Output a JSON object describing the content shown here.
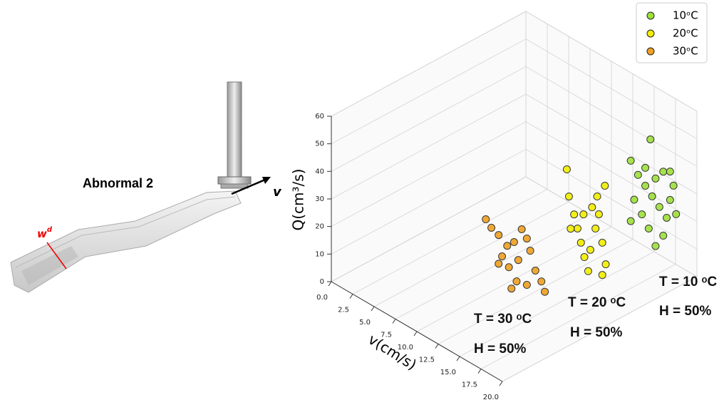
{
  "illustration": {
    "label": "Abnormal 2",
    "width_label": "w",
    "width_sup": "d",
    "velocity_label": "v"
  },
  "chart_data": {
    "type": "scatter3d",
    "xlabel": "v(cm/s)",
    "ylabel": "Q(cm³/s)",
    "xlim": [
      0,
      20
    ],
    "ylim": [
      0,
      60
    ],
    "xticks": [
      {
        "value": 0,
        "label": "0.0"
      },
      {
        "value": 2.5,
        "label": "2.5"
      },
      {
        "value": 5,
        "label": "5.0"
      },
      {
        "value": 7.5,
        "label": "7.5"
      },
      {
        "value": 10,
        "label": "10.0"
      },
      {
        "value": 12.5,
        "label": "12.5"
      },
      {
        "value": 15,
        "label": "15.0"
      },
      {
        "value": 17.5,
        "label": "17.5"
      },
      {
        "value": 20,
        "label": "20.0"
      }
    ],
    "yticks": [
      0,
      10,
      20,
      30,
      40,
      50,
      60
    ],
    "grid": true,
    "legend": "upper right",
    "series": [
      {
        "name": "10ᵒC",
        "color": "#9de03a",
        "x": [
          15.7,
          13.4,
          14.25,
          15.1,
          15.9,
          16.75,
          17.6,
          18.4,
          17.2,
          16.3,
          13.8,
          14.7,
          15.5,
          17.2,
          18.0,
          18.7,
          16.3,
          15.1,
          18.0,
          13.4
        ],
        "values": [
          43.9,
          32.0,
          28.4,
          26.0,
          23.6,
          21.3,
          18.9,
          32.0,
          34.9,
          30.8,
          18.6,
          14.9,
          11.2,
          11.7,
          26.1,
          22.2,
          6.3,
          32.5,
          36.4,
          10.1
        ]
      },
      {
        "name": "20ᵒC",
        "color": "#f2ee00",
        "x": [
          12.75,
          13.0,
          13.6,
          14.0,
          14.4,
          14.8,
          15.25,
          15.7,
          16.1,
          16.5,
          16.9,
          17.2,
          17.3,
          16.9,
          14.7,
          15.5,
          13.2,
          16.3
        ],
        "values": [
          39.1,
          29.7,
          24.3,
          19.9,
          15.5,
          11.0,
          6.7,
          30.7,
          23.7,
          29.6,
          20.0,
          41.2,
          12.9,
          8.3,
          26.3,
          14.9,
          18.4,
          35.7
        ]
      },
      {
        "name": "30ᵒC",
        "color": "#f0a020",
        "x": [
          10.1,
          10.75,
          11.6,
          12.6,
          13.4,
          14.3,
          14.9,
          12.0,
          12.8,
          13.9,
          15.3,
          15.9,
          16.6,
          14.9,
          13.7,
          17.0,
          13.1,
          11.6
        ],
        "values": [
          27.6,
          25.7,
          24.6,
          22.5,
          25.3,
          31.6,
          29.3,
          17.6,
          15.1,
          19.7,
          25.6,
          19.5,
          16.8,
          12.5,
          11.6,
          13.8,
          7.9,
          14.2
        ]
      }
    ],
    "annotations": [
      {
        "temperature": "T = 10 ᵒC",
        "humidity": "H = 50%"
      },
      {
        "temperature": "T = 20 ᵒC",
        "humidity": "H = 50%"
      },
      {
        "temperature": "T = 30 ᵒC",
        "humidity": "H = 50%"
      }
    ]
  }
}
